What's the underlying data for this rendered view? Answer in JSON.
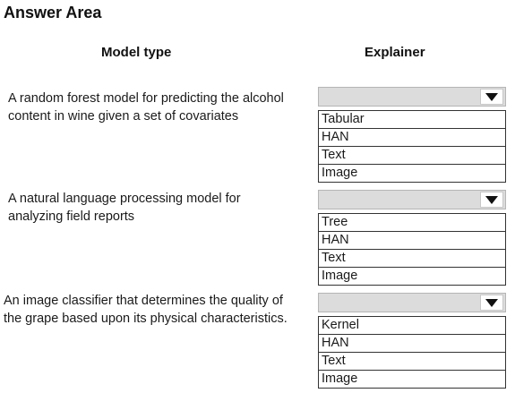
{
  "title": "Answer Area",
  "columns": {
    "model_type": "Model type",
    "explainer": "Explainer"
  },
  "questions": [
    {
      "line1": "A random forest model for predicting the alcohol",
      "line2": "content in wine given a set of covariates",
      "options": [
        "Tabular",
        "HAN",
        "Text",
        "Image"
      ]
    },
    {
      "line1": "A natural language processing model for",
      "line2": "analyzing field reports",
      "options": [
        "Tree",
        "HAN",
        "Text",
        "Image"
      ]
    },
    {
      "line1": "An image classifier that determines the quality of",
      "line2": "the grape based upon its physical characteristics.",
      "options": [
        "Kernel",
        "HAN",
        "Text",
        "Image"
      ]
    }
  ],
  "icons": {
    "dropdown": "triangle-down-icon"
  }
}
